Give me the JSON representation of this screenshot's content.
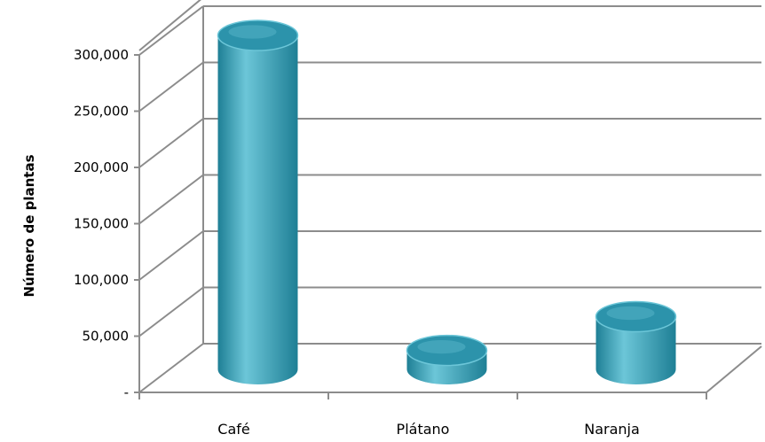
{
  "chart_data": {
    "type": "bar",
    "style": "3d-cylinder",
    "categories": [
      "Café",
      "Plátano",
      "Naranja"
    ],
    "values": [
      300000,
      20000,
      50000
    ],
    "title": "",
    "xlabel": "",
    "ylabel": "Número de plantas",
    "ylim": [
      0,
      300000
    ],
    "yticks": [
      0,
      50000,
      100000,
      150000,
      200000,
      250000,
      300000
    ],
    "ytick_labels": [
      "-",
      "50,000",
      "100,000",
      "150,000",
      "200,000",
      "250,000",
      "300,000"
    ],
    "grid": true,
    "legend": "none",
    "colors": {
      "bar_body": "#3aa8c1",
      "bar_light": "#6cc6d8",
      "bar_dark": "#1e7f95",
      "bar_top": "#2c93ab",
      "gridline": "#8c8c8c",
      "axis": "#8c8c8c"
    }
  }
}
